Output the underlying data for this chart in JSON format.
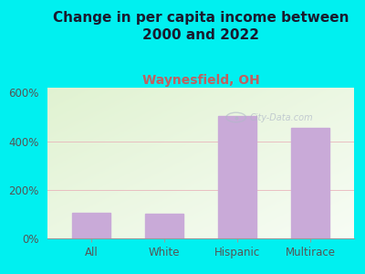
{
  "title": "Change in per capita income between\n2000 and 2022",
  "subtitle": "Waynesfield, OH",
  "categories": [
    "All",
    "White",
    "Hispanic",
    "Multirace"
  ],
  "values": [
    105,
    100,
    505,
    455
  ],
  "bar_color": "#c9aad8",
  "ylim": [
    0,
    620
  ],
  "yticks": [
    0,
    200,
    400,
    600
  ],
  "ytick_labels": [
    "0%",
    "200%",
    "400%",
    "600%"
  ],
  "bg_color": "#00f0f0",
  "grid_color": "#e8b0b8",
  "title_fontsize": 11,
  "subtitle_fontsize": 10,
  "title_color": "#1a1a2e",
  "subtitle_color": "#c06060",
  "watermark": "City-Data.com",
  "watermark_color": "#b0b8c8",
  "tick_color": "#555555"
}
